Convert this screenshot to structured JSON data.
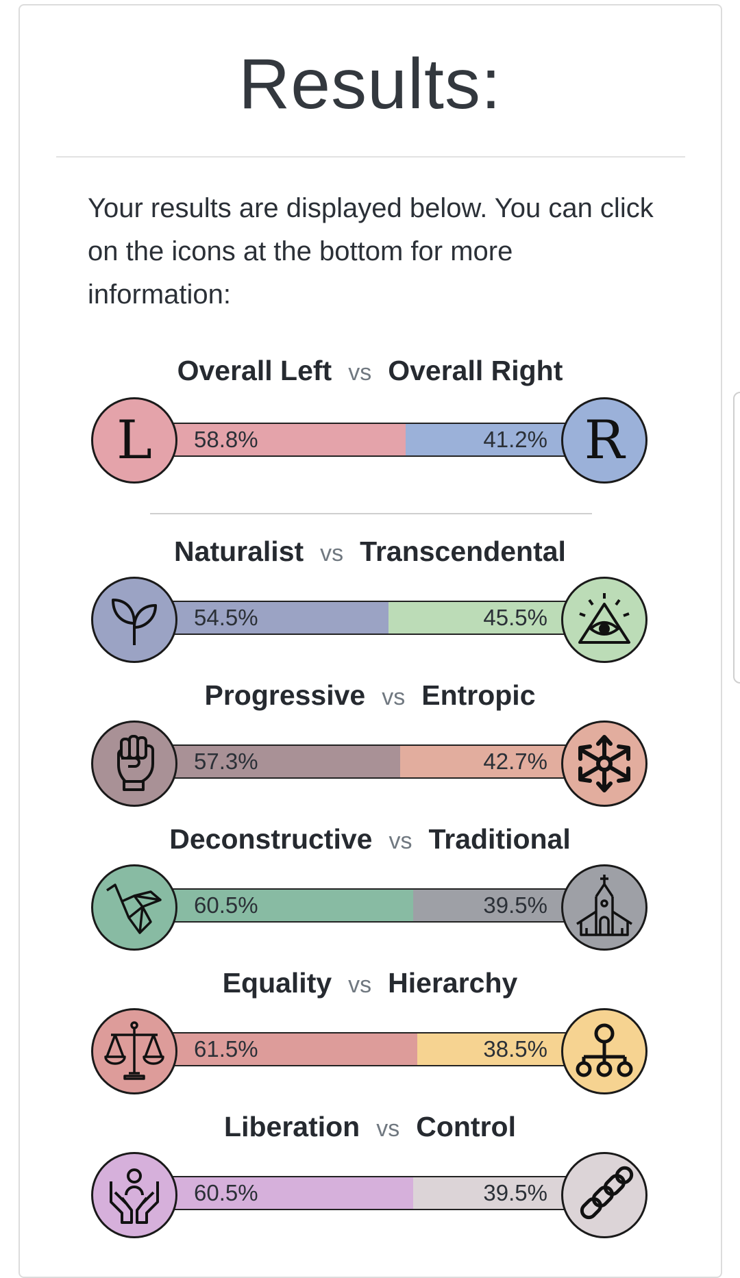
{
  "page": {
    "title": "Results:",
    "intro": "Your results are displayed below. You can click on the icons at the bottom for more information:"
  },
  "axes": [
    {
      "left": "Overall Left",
      "vs": "vs",
      "right": "Overall Right",
      "left_pct": "58.8%",
      "right_pct": "41.2%",
      "left_value": 58.8,
      "left_color": "#e4a3aa",
      "right_color": "#9bb1d9",
      "left_icon": "letter-l-icon",
      "right_icon": "letter-r-icon",
      "left_glyph": "L",
      "right_glyph": "R"
    },
    {
      "left": "Naturalist",
      "vs": "vs",
      "right": "Transcendental",
      "left_pct": "54.5%",
      "right_pct": "45.5%",
      "left_value": 54.5,
      "left_color": "#9ba3c4",
      "right_color": "#bcdcb7",
      "left_icon": "sprout-icon",
      "right_icon": "all-seeing-eye-icon"
    },
    {
      "left": "Progressive",
      "vs": "vs",
      "right": "Entropic",
      "left_pct": "57.3%",
      "right_pct": "42.7%",
      "left_value": 57.3,
      "left_color": "#a99196",
      "right_color": "#e2ad9e",
      "left_icon": "raised-fist-icon",
      "right_icon": "chaos-star-icon"
    },
    {
      "left": "Deconstructive",
      "vs": "vs",
      "right": "Traditional",
      "left_pct": "60.5%",
      "right_pct": "39.5%",
      "left_value": 60.5,
      "left_color": "#88bba3",
      "right_color": "#9ea0a6",
      "left_icon": "origami-bird-icon",
      "right_icon": "church-icon"
    },
    {
      "left": "Equality",
      "vs": "vs",
      "right": "Hierarchy",
      "left_pct": "61.5%",
      "right_pct": "38.5%",
      "left_value": 61.5,
      "left_color": "#dd9c9a",
      "right_color": "#f6d391",
      "left_icon": "scales-icon",
      "right_icon": "hierarchy-icon"
    },
    {
      "left": "Liberation",
      "vs": "vs",
      "right": "Control",
      "left_pct": "60.5%",
      "right_pct": "39.5%",
      "left_value": 60.5,
      "left_color": "#d6b0db",
      "right_color": "#dcd4d7",
      "left_icon": "open-hands-icon",
      "right_icon": "chain-icon"
    }
  ]
}
